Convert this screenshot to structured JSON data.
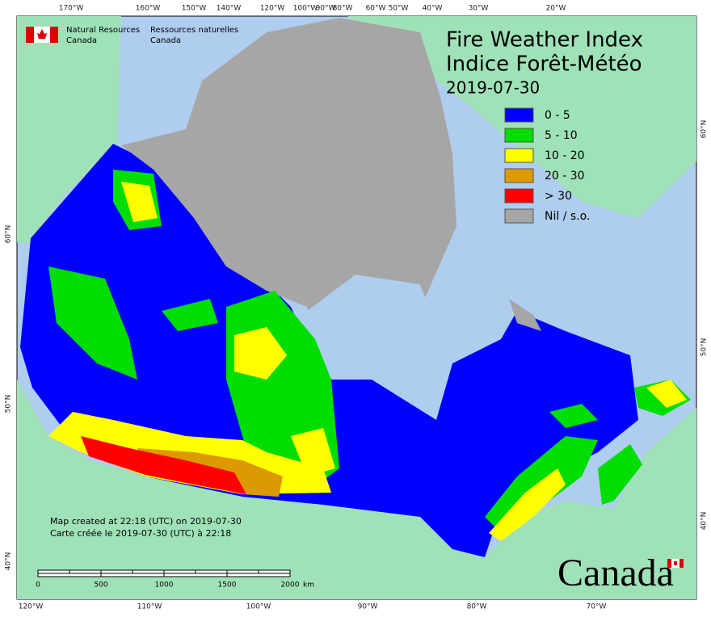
{
  "header": {
    "title": "Fire Weather Index",
    "title_fr": "Indice Forêt-Météo",
    "date": "2019-07-30"
  },
  "agency": {
    "en": [
      "Natural Resources",
      "Canada"
    ],
    "fr": [
      "Ressources naturelles",
      "Canada"
    ]
  },
  "legend": [
    {
      "label": "0 - 5",
      "color": "#0000ff"
    },
    {
      "label": "5 - 10",
      "color": "#00dd00"
    },
    {
      "label": "10 - 20",
      "color": "#ffff00"
    },
    {
      "label": "20 - 30",
      "color": "#dd9900"
    },
    {
      "label": "> 30",
      "color": "#ff0000"
    },
    {
      "label": "Nil / s.o.",
      "color": "#a6a6a6"
    }
  ],
  "credits": [
    "Map created at 22:18 (UTC) on 2019-07-30",
    "Carte créée le 2019-07-30 (UTC) à 22:18"
  ],
  "scale": {
    "labels": [
      0,
      500,
      1000,
      1500,
      2000
    ],
    "unit": "km"
  },
  "graticule": {
    "top": [
      "170°W",
      "160°W",
      "150°W",
      "140°W",
      "120°W",
      "100°W",
      "90°W",
      "80°W",
      "60°W",
      "50°W",
      "40°W",
      "30°W",
      "20°W"
    ],
    "bottom": [
      "120°W",
      "110°W",
      "100°W",
      "90°W",
      "80°W",
      "70°W"
    ],
    "left": [
      "60°N",
      "50°N",
      "40°N"
    ],
    "right": [
      "60°N",
      "50°N",
      "40°N"
    ]
  },
  "wordmark": "Canada"
}
